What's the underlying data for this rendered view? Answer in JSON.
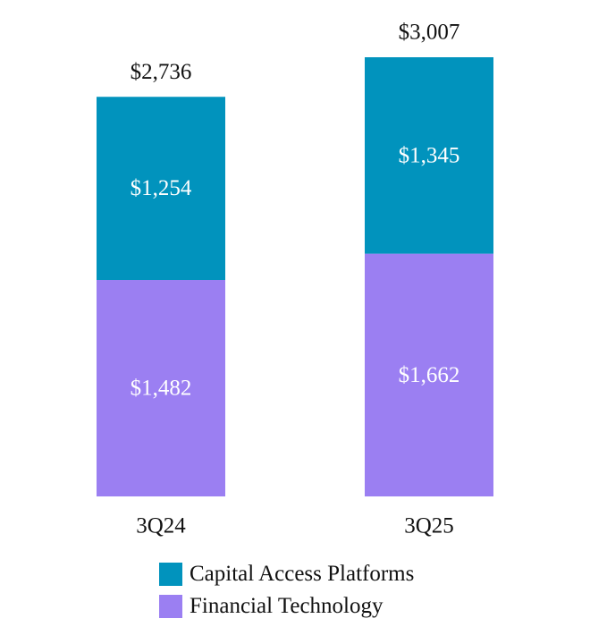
{
  "chart_data": {
    "type": "bar",
    "stacked": true,
    "categories": [
      "3Q24",
      "3Q25"
    ],
    "series": [
      {
        "name": "Financial Technology",
        "values": [
          1482,
          1662
        ],
        "labels": [
          "$1,482",
          "$1,662"
        ],
        "color": "#9b7ff2"
      },
      {
        "name": "Capital Access Platforms",
        "values": [
          1254,
          1345
        ],
        "labels": [
          "$1,254",
          "$1,345"
        ],
        "color": "#0193bd"
      }
    ],
    "totals": [
      2736,
      3007
    ],
    "total_labels": [
      "$2,736",
      "$3,007"
    ],
    "ylim": [
      0,
      3007
    ],
    "legend_position": "bottom",
    "grid": false
  },
  "legend": [
    {
      "label": "Capital Access Platforms",
      "color": "#0193bd"
    },
    {
      "label": "Financial Technology",
      "color": "#9b7ff2"
    }
  ]
}
